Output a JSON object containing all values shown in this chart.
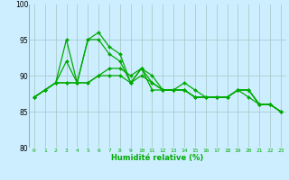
{
  "xlabel": "Humidité relative (%)",
  "xlim": [
    -0.5,
    23.5
  ],
  "ylim": [
    80,
    100
  ],
  "yticks": [
    80,
    85,
    90,
    95,
    100
  ],
  "xticks": [
    0,
    1,
    2,
    3,
    4,
    5,
    6,
    7,
    8,
    9,
    10,
    11,
    12,
    13,
    14,
    15,
    16,
    17,
    18,
    19,
    20,
    21,
    22,
    23
  ],
  "xticklabels": [
    "0",
    "1",
    "2",
    "3",
    "4",
    "5",
    "6",
    "7",
    "8",
    "9",
    "10",
    "11",
    "12",
    "13",
    "14",
    "15",
    "16",
    "17",
    "18",
    "19",
    "20",
    "21",
    "22",
    "23"
  ],
  "bg_color": "#cceeff",
  "grid_color": "#aacccc",
  "line_color": "#00aa00",
  "markersize": 2.0,
  "linewidth": 0.9,
  "series": [
    [
      87,
      88,
      89,
      92,
      89,
      95,
      96,
      94,
      93,
      89,
      91,
      90,
      88,
      88,
      88,
      87,
      87,
      87,
      87,
      88,
      88,
      86,
      86,
      85
    ],
    [
      87,
      88,
      89,
      95,
      89,
      95,
      95,
      93,
      92,
      89,
      91,
      88,
      88,
      88,
      88,
      87,
      87,
      87,
      87,
      88,
      88,
      86,
      86,
      85
    ],
    [
      87,
      88,
      89,
      89,
      89,
      89,
      90,
      90,
      90,
      89,
      90,
      89,
      88,
      88,
      88,
      87,
      87,
      87,
      87,
      88,
      87,
      86,
      86,
      85
    ],
    [
      87,
      88,
      89,
      89,
      89,
      89,
      90,
      91,
      91,
      90,
      91,
      89,
      88,
      88,
      89,
      88,
      87,
      87,
      87,
      88,
      88,
      86,
      86,
      85
    ]
  ]
}
